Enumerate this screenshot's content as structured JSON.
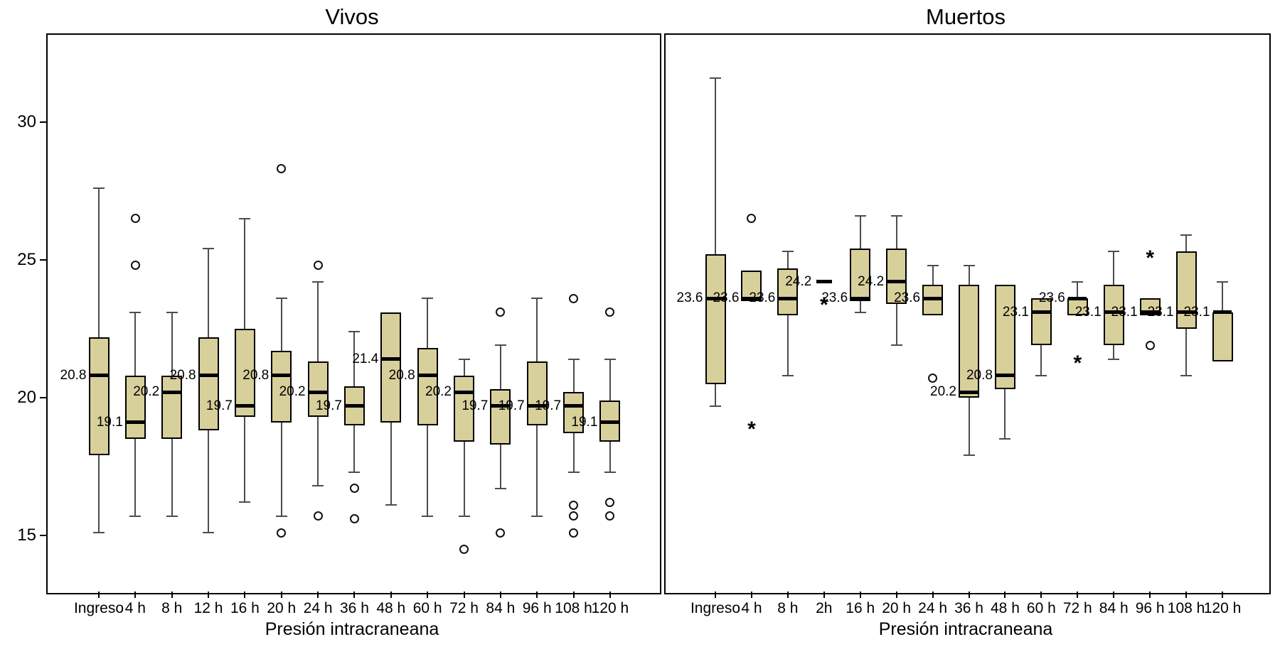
{
  "colors": {
    "background": "#ffffff",
    "box_fill": "#d8d09b",
    "box_border": "#000000",
    "median_line": "#000000",
    "whisker": "#4d4d4d",
    "text": "#000000"
  },
  "chart_data": [
    {
      "type": "boxplot",
      "title": "Vivos",
      "xlabel": "Presión intracraneana",
      "ylabel": "",
      "ylim": [
        13.0,
        33.2
      ],
      "yticks": [
        15,
        20,
        25,
        30
      ],
      "show_yticks": true,
      "legend": "none",
      "grid": false,
      "categories": [
        "Ingreso",
        "4 h",
        "8 h",
        "12 h",
        "16 h",
        "20 h",
        "24 h",
        "36 h",
        "48 h",
        "60 h",
        "72 h",
        "84 h",
        "96 h",
        "108 h",
        "120 h"
      ],
      "series": [
        {
          "category": "Ingreso",
          "whisker_low": 15.1,
          "q1": 17.9,
          "median": 20.8,
          "q3": 22.2,
          "whisker_high": 27.6,
          "label": "20.8",
          "outliers": [],
          "extremes": []
        },
        {
          "category": "4 h",
          "whisker_low": 15.7,
          "q1": 18.5,
          "median": 19.1,
          "q3": 20.8,
          "whisker_high": 23.1,
          "label": "19.1",
          "outliers": [
            26.5,
            24.8
          ],
          "extremes": []
        },
        {
          "category": "8 h",
          "whisker_low": 15.7,
          "q1": 18.5,
          "median": 20.2,
          "q3": 20.8,
          "whisker_high": 23.1,
          "label": "20.2",
          "outliers": [],
          "extremes": []
        },
        {
          "category": "12 h",
          "whisker_low": 15.1,
          "q1": 18.8,
          "median": 20.8,
          "q3": 22.2,
          "whisker_high": 25.4,
          "label": "20.8",
          "outliers": [],
          "extremes": []
        },
        {
          "category": "16 h",
          "whisker_low": 16.2,
          "q1": 19.3,
          "median": 19.7,
          "q3": 22.5,
          "whisker_high": 26.5,
          "label": "19.7",
          "outliers": [],
          "extremes": []
        },
        {
          "category": "20 h",
          "whisker_low": 15.7,
          "q1": 19.1,
          "median": 20.8,
          "q3": 21.7,
          "whisker_high": 23.6,
          "label": "20.8",
          "outliers": [
            28.3,
            15.1
          ],
          "extremes": []
        },
        {
          "category": "24 h",
          "whisker_low": 16.8,
          "q1": 19.3,
          "median": 20.2,
          "q3": 21.3,
          "whisker_high": 24.2,
          "label": "20.2",
          "outliers": [
            24.8,
            15.7
          ],
          "extremes": []
        },
        {
          "category": "36 h",
          "whisker_low": 17.3,
          "q1": 19.0,
          "median": 19.7,
          "q3": 20.4,
          "whisker_high": 22.4,
          "label": "19.7",
          "outliers": [
            16.7,
            15.6
          ],
          "extremes": []
        },
        {
          "category": "48 h",
          "whisker_low": 16.1,
          "q1": 19.1,
          "median": 21.4,
          "q3": 23.1,
          "whisker_high": 23.1,
          "label": "21.4",
          "outliers": [],
          "extremes": []
        },
        {
          "category": "60 h",
          "whisker_low": 15.7,
          "q1": 19.0,
          "median": 20.8,
          "q3": 21.8,
          "whisker_high": 23.6,
          "label": "20.8",
          "outliers": [],
          "extremes": []
        },
        {
          "category": "72 h",
          "whisker_low": 15.7,
          "q1": 18.4,
          "median": 20.2,
          "q3": 20.8,
          "whisker_high": 21.4,
          "label": "20.2",
          "outliers": [
            14.5
          ],
          "extremes": []
        },
        {
          "category": "84 h",
          "whisker_low": 16.7,
          "q1": 18.3,
          "median": 19.7,
          "q3": 20.3,
          "whisker_high": 21.9,
          "label": "19.7",
          "outliers": [
            23.1,
            15.1
          ],
          "extremes": []
        },
        {
          "category": "96 h",
          "whisker_low": 15.7,
          "q1": 19.0,
          "median": 19.7,
          "q3": 21.3,
          "whisker_high": 23.6,
          "label": "19.7",
          "outliers": [],
          "extremes": []
        },
        {
          "category": "108 h",
          "whisker_low": 17.3,
          "q1": 18.7,
          "median": 19.7,
          "q3": 20.2,
          "whisker_high": 21.4,
          "label": "19.7",
          "outliers": [
            23.6,
            16.1,
            15.7,
            15.1
          ],
          "extremes": []
        },
        {
          "category": "120 h",
          "whisker_low": 17.3,
          "q1": 18.4,
          "median": 19.1,
          "q3": 19.9,
          "whisker_high": 21.4,
          "label": "19.1",
          "outliers": [
            23.1,
            16.2,
            15.7
          ],
          "extremes": []
        }
      ]
    },
    {
      "type": "boxplot",
      "title": "Muertos",
      "xlabel": "Presión intracraneana",
      "ylabel": "",
      "ylim": [
        13.0,
        33.2
      ],
      "yticks": [
        15,
        20,
        25,
        30
      ],
      "show_yticks": false,
      "legend": "none",
      "grid": false,
      "categories": [
        "Ingreso",
        "4 h",
        "8 h",
        "2h",
        "16 h",
        "20 h",
        "24 h",
        "36 h",
        "48 h",
        "60 h",
        "72 h",
        "84 h",
        "96 h",
        "108 h",
        "120 h"
      ],
      "series": [
        {
          "category": "Ingreso",
          "whisker_low": 19.7,
          "q1": 20.5,
          "median": 23.6,
          "q3": 25.2,
          "whisker_high": 31.6,
          "label": "23.6",
          "outliers": [],
          "extremes": []
        },
        {
          "category": "4 h",
          "whisker_low": 23.5,
          "q1": 23.5,
          "median": 23.6,
          "q3": 24.6,
          "whisker_high": 24.6,
          "label": "23.6",
          "outliers": [
            26.5
          ],
          "extremes": [
            19.0
          ]
        },
        {
          "category": "8 h",
          "whisker_low": 20.8,
          "q1": 23.0,
          "median": 23.6,
          "q3": 24.7,
          "whisker_high": 25.3,
          "label": "23.6",
          "outliers": [],
          "extremes": []
        },
        {
          "category": "2h",
          "whisker_low": 24.2,
          "q1": 24.2,
          "median": 24.2,
          "q3": 24.2,
          "whisker_high": 24.2,
          "label": "24.2",
          "outliers": [],
          "extremes": [
            23.5
          ]
        },
        {
          "category": "16 h",
          "whisker_low": 23.1,
          "q1": 23.5,
          "median": 23.6,
          "q3": 25.4,
          "whisker_high": 26.6,
          "label": "23.6",
          "outliers": [],
          "extremes": []
        },
        {
          "category": "20 h",
          "whisker_low": 21.9,
          "q1": 23.4,
          "median": 24.2,
          "q3": 25.4,
          "whisker_high": 26.6,
          "label": "24.2",
          "outliers": [],
          "extremes": []
        },
        {
          "category": "24 h",
          "whisker_low": 23.0,
          "q1": 23.0,
          "median": 23.6,
          "q3": 24.1,
          "whisker_high": 24.8,
          "label": "23.6",
          "outliers": [
            20.7
          ],
          "extremes": []
        },
        {
          "category": "36 h",
          "whisker_low": 17.9,
          "q1": 20.0,
          "median": 20.2,
          "q3": 24.1,
          "whisker_high": 24.8,
          "label": "20.2",
          "outliers": [],
          "extremes": []
        },
        {
          "category": "48 h",
          "whisker_low": 18.5,
          "q1": 20.3,
          "median": 20.8,
          "q3": 24.1,
          "whisker_high": 24.1,
          "label": "20.8",
          "outliers": [],
          "extremes": []
        },
        {
          "category": "60 h",
          "whisker_low": 20.8,
          "q1": 21.9,
          "median": 23.1,
          "q3": 23.6,
          "whisker_high": 23.6,
          "label": "23.1",
          "outliers": [],
          "extremes": []
        },
        {
          "category": "72 h",
          "whisker_low": 23.0,
          "q1": 23.0,
          "median": 23.6,
          "q3": 23.6,
          "whisker_high": 24.2,
          "label": "23.6",
          "outliers": [],
          "extremes": [
            21.4
          ]
        },
        {
          "category": "84 h",
          "whisker_low": 21.4,
          "q1": 21.9,
          "median": 23.1,
          "q3": 24.1,
          "whisker_high": 25.3,
          "label": "23.1",
          "outliers": [],
          "extremes": []
        },
        {
          "category": "96 h",
          "whisker_low": 23.0,
          "q1": 23.0,
          "median": 23.1,
          "q3": 23.6,
          "whisker_high": 23.6,
          "label": "23.1",
          "outliers": [
            21.9
          ],
          "extremes": [
            25.2
          ]
        },
        {
          "category": "108 h",
          "whisker_low": 20.8,
          "q1": 22.5,
          "median": 23.1,
          "q3": 25.3,
          "whisker_high": 25.9,
          "label": "23.1",
          "outliers": [],
          "extremes": []
        },
        {
          "category": "120 h",
          "whisker_low": 21.3,
          "q1": 21.3,
          "median": 23.1,
          "q3": 23.1,
          "whisker_high": 24.2,
          "label": "23.1",
          "outliers": [],
          "extremes": []
        }
      ]
    }
  ]
}
